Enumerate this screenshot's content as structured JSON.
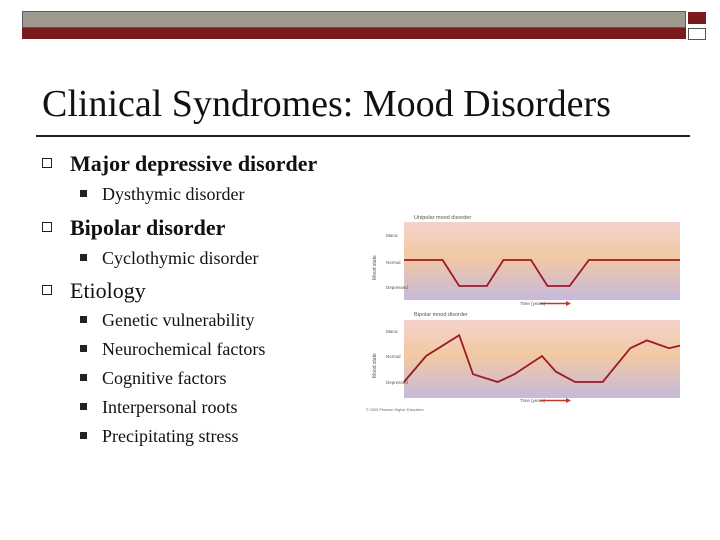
{
  "slide": {
    "title": "Clinical Syndromes: Mood Disorders",
    "bullets": [
      {
        "text": "Major depressive disorder",
        "sub": [
          "Dysthymic disorder"
        ]
      },
      {
        "text": "Bipolar disorder",
        "sub": [
          "Cyclothymic disorder"
        ]
      },
      {
        "text": "Etiology",
        "sub": [
          "Genetic vulnerability",
          "Neurochemical factors",
          "Cognitive factors",
          "Interpersonal roots",
          "Precipitating stress"
        ]
      }
    ]
  },
  "figure": {
    "panels": [
      {
        "title": "Unipolar mood disorder",
        "ylabel": "Mood state",
        "levels": [
          "Manic",
          "Normal",
          "Depressed"
        ],
        "time_label": "Time (years)",
        "points": [
          [
            0,
            1
          ],
          [
            14,
            1
          ],
          [
            20,
            0
          ],
          [
            30,
            0
          ],
          [
            36,
            1
          ],
          [
            46,
            1
          ],
          [
            52,
            0
          ],
          [
            60,
            0
          ],
          [
            67,
            1
          ],
          [
            76,
            1
          ],
          [
            86,
            1
          ],
          [
            100,
            1
          ]
        ]
      },
      {
        "title": "Bipolar mood disorder",
        "ylabel": "Mood state",
        "levels": [
          "Manic",
          "Normal",
          "Depressed"
        ],
        "time_label": "Time (years)",
        "points": [
          [
            0,
            0
          ],
          [
            8,
            1
          ],
          [
            20,
            1.8
          ],
          [
            25,
            0.3
          ],
          [
            34,
            0
          ],
          [
            40,
            0.3
          ],
          [
            50,
            1
          ],
          [
            55,
            0.4
          ],
          [
            62,
            0
          ],
          [
            72,
            0
          ],
          [
            82,
            1.3
          ],
          [
            88,
            1.6
          ],
          [
            96,
            1.3
          ],
          [
            100,
            1.4
          ]
        ]
      }
    ],
    "credit": "© 2003 Pearson Higher Education"
  },
  "colors": {
    "accent": "#7b1a1a",
    "line": "#9a1a2a",
    "arrow": "#c0392b"
  }
}
